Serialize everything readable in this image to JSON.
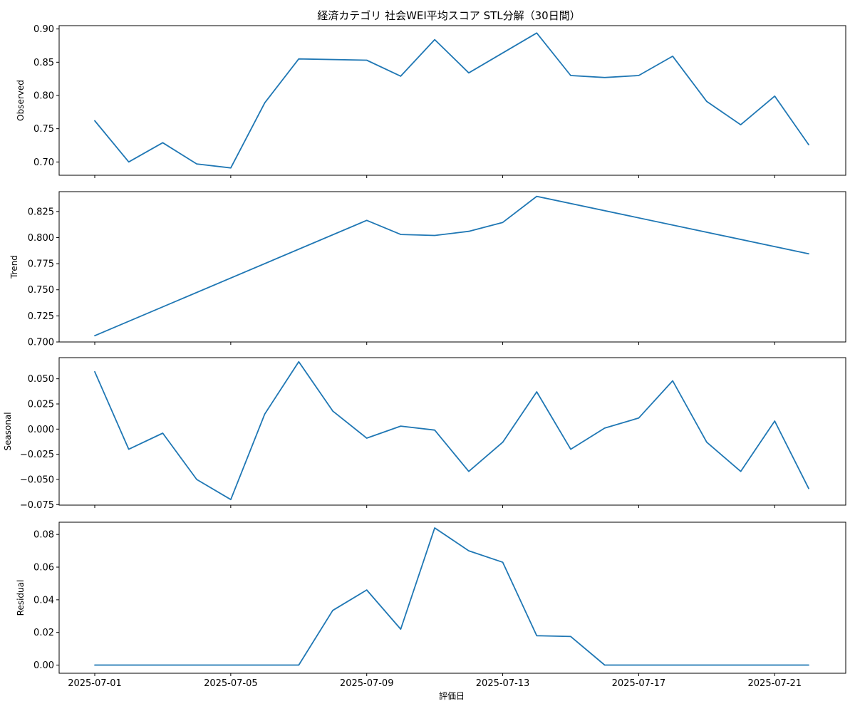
{
  "chart_data": {
    "type": "line",
    "title": "経済カテゴリ 社会WEI平均スコア STL分解（30日間）",
    "xlabel": "評価日",
    "line_color": "#1f77b4",
    "x": [
      "2025-07-01",
      "2025-07-02",
      "2025-07-03",
      "2025-07-04",
      "2025-07-05",
      "2025-07-06",
      "2025-07-07",
      "2025-07-08",
      "2025-07-09",
      "2025-07-10",
      "2025-07-11",
      "2025-07-12",
      "2025-07-13",
      "2025-07-14",
      "2025-07-15",
      "2025-07-16",
      "2025-07-17",
      "2025-07-18",
      "2025-07-19",
      "2025-07-20",
      "2025-07-21",
      "2025-07-22"
    ],
    "observed_dates": [
      "2025-07-01",
      "2025-07-02",
      "2025-07-03",
      "2025-07-04",
      "2025-07-05",
      "2025-07-06",
      "2025-07-07",
      "2025-07-09",
      "2025-07-10",
      "2025-07-11",
      "2025-07-12",
      "2025-07-13",
      "2025-07-14",
      "2025-07-15",
      "2025-07-16",
      "2025-07-17",
      "2025-07-18",
      "2025-07-19",
      "2025-07-20",
      "2025-07-21",
      "2025-07-22"
    ],
    "x_ticks": [
      "2025-07-01",
      "2025-07-05",
      "2025-07-09",
      "2025-07-13",
      "2025-07-17",
      "2025-07-21"
    ],
    "panels": [
      {
        "name": "observed",
        "ylabel": "Observed",
        "ylim": [
          0.68,
          0.905
        ],
        "yticks": [
          "0.70",
          "0.75",
          "0.80",
          "0.85",
          "0.90"
        ],
        "dates": [
          "2025-07-01",
          "2025-07-02",
          "2025-07-03",
          "2025-07-04",
          "2025-07-05",
          "2025-07-06",
          "2025-07-07",
          "2025-07-09",
          "2025-07-10",
          "2025-07-11",
          "2025-07-12",
          "2025-07-13",
          "2025-07-14",
          "2025-07-15",
          "2025-07-16",
          "2025-07-17",
          "2025-07-18",
          "2025-07-19",
          "2025-07-20",
          "2025-07-21",
          "2025-07-22"
        ],
        "values": [
          0.762,
          0.7,
          0.729,
          0.697,
          0.691,
          0.789,
          0.855,
          0.853,
          0.829,
          0.884,
          0.834,
          0.864,
          0.894,
          0.83,
          0.827,
          0.83,
          0.859,
          0.791,
          0.756,
          0.799,
          0.726
        ]
      },
      {
        "name": "trend",
        "ylabel": "Trend",
        "ylim": [
          0.7,
          0.844
        ],
        "yticks": [
          "0.700",
          "0.725",
          "0.750",
          "0.775",
          "0.800",
          "0.825"
        ],
        "dates": [
          "2025-07-01",
          "2025-07-09",
          "2025-07-10",
          "2025-07-11",
          "2025-07-12",
          "2025-07-13",
          "2025-07-14",
          "2025-07-22"
        ],
        "values": [
          0.706,
          0.8165,
          0.803,
          0.802,
          0.806,
          0.8145,
          0.8395,
          0.7845
        ]
      },
      {
        "name": "seasonal",
        "ylabel": "Seasonal",
        "ylim": [
          -0.0755,
          0.071
        ],
        "yticks": [
          "−0.075",
          "−0.050",
          "−0.025",
          "0.000",
          "0.025",
          "0.050"
        ],
        "dates": [
          "2025-07-01",
          "2025-07-02",
          "2025-07-03",
          "2025-07-04",
          "2025-07-05",
          "2025-07-06",
          "2025-07-07",
          "2025-07-08",
          "2025-07-09",
          "2025-07-10",
          "2025-07-11",
          "2025-07-12",
          "2025-07-13",
          "2025-07-14",
          "2025-07-15",
          "2025-07-16",
          "2025-07-17",
          "2025-07-18",
          "2025-07-19",
          "2025-07-20",
          "2025-07-21",
          "2025-07-22"
        ],
        "values": [
          0.057,
          -0.02,
          -0.004,
          -0.05,
          -0.07,
          0.015,
          0.067,
          0.018,
          -0.009,
          0.003,
          -0.001,
          -0.042,
          -0.013,
          0.037,
          -0.02,
          0.001,
          0.011,
          0.048,
          -0.013,
          -0.042,
          0.008,
          -0.059
        ]
      },
      {
        "name": "residual",
        "ylabel": "Residual",
        "ylim": [
          -0.005,
          0.0875
        ],
        "yticks": [
          "0.00",
          "0.02",
          "0.04",
          "0.06",
          "0.08"
        ],
        "dates": [
          "2025-07-01",
          "2025-07-02",
          "2025-07-03",
          "2025-07-04",
          "2025-07-05",
          "2025-07-06",
          "2025-07-07",
          "2025-07-08",
          "2025-07-09",
          "2025-07-10",
          "2025-07-11",
          "2025-07-12",
          "2025-07-13",
          "2025-07-14",
          "2025-07-15",
          "2025-07-16",
          "2025-07-17",
          "2025-07-18",
          "2025-07-19",
          "2025-07-20",
          "2025-07-21",
          "2025-07-22"
        ],
        "values": [
          0,
          0,
          0,
          0,
          0,
          0,
          0,
          0.0335,
          0.046,
          0.022,
          0.084,
          0.07,
          0.063,
          0.018,
          0.0175,
          0,
          0,
          0,
          0,
          0,
          0,
          0
        ]
      }
    ]
  }
}
